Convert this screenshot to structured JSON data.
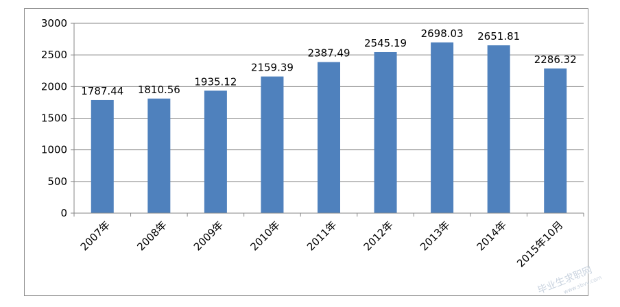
{
  "chart_data": {
    "type": "bar",
    "categories": [
      "2007年",
      "2008年",
      "2009年",
      "2010年",
      "2011年",
      "2012年",
      "2013年",
      "2014年",
      "2015年10月"
    ],
    "series": [
      {
        "values": [
          1787.44,
          1810.56,
          1935.12,
          2159.39,
          2387.49,
          2545.19,
          2698.03,
          2651.81,
          2286.32
        ]
      }
    ],
    "data_labels": [
      "1787.44",
      "1810.56",
      "1935.12",
      "2159.39",
      "2387.49",
      "2545.19",
      "2698.03",
      "2651.81",
      "2286.32"
    ],
    "y_ticks": [
      0,
      500,
      1000,
      1500,
      2000,
      2500,
      3000
    ],
    "ylim": [
      0,
      3000
    ],
    "grid": true,
    "legend": "none",
    "bar_color": "#4f81bd"
  },
  "watermark": {
    "line1": "毕业生求职网",
    "line2": "www.sbvv.com"
  }
}
